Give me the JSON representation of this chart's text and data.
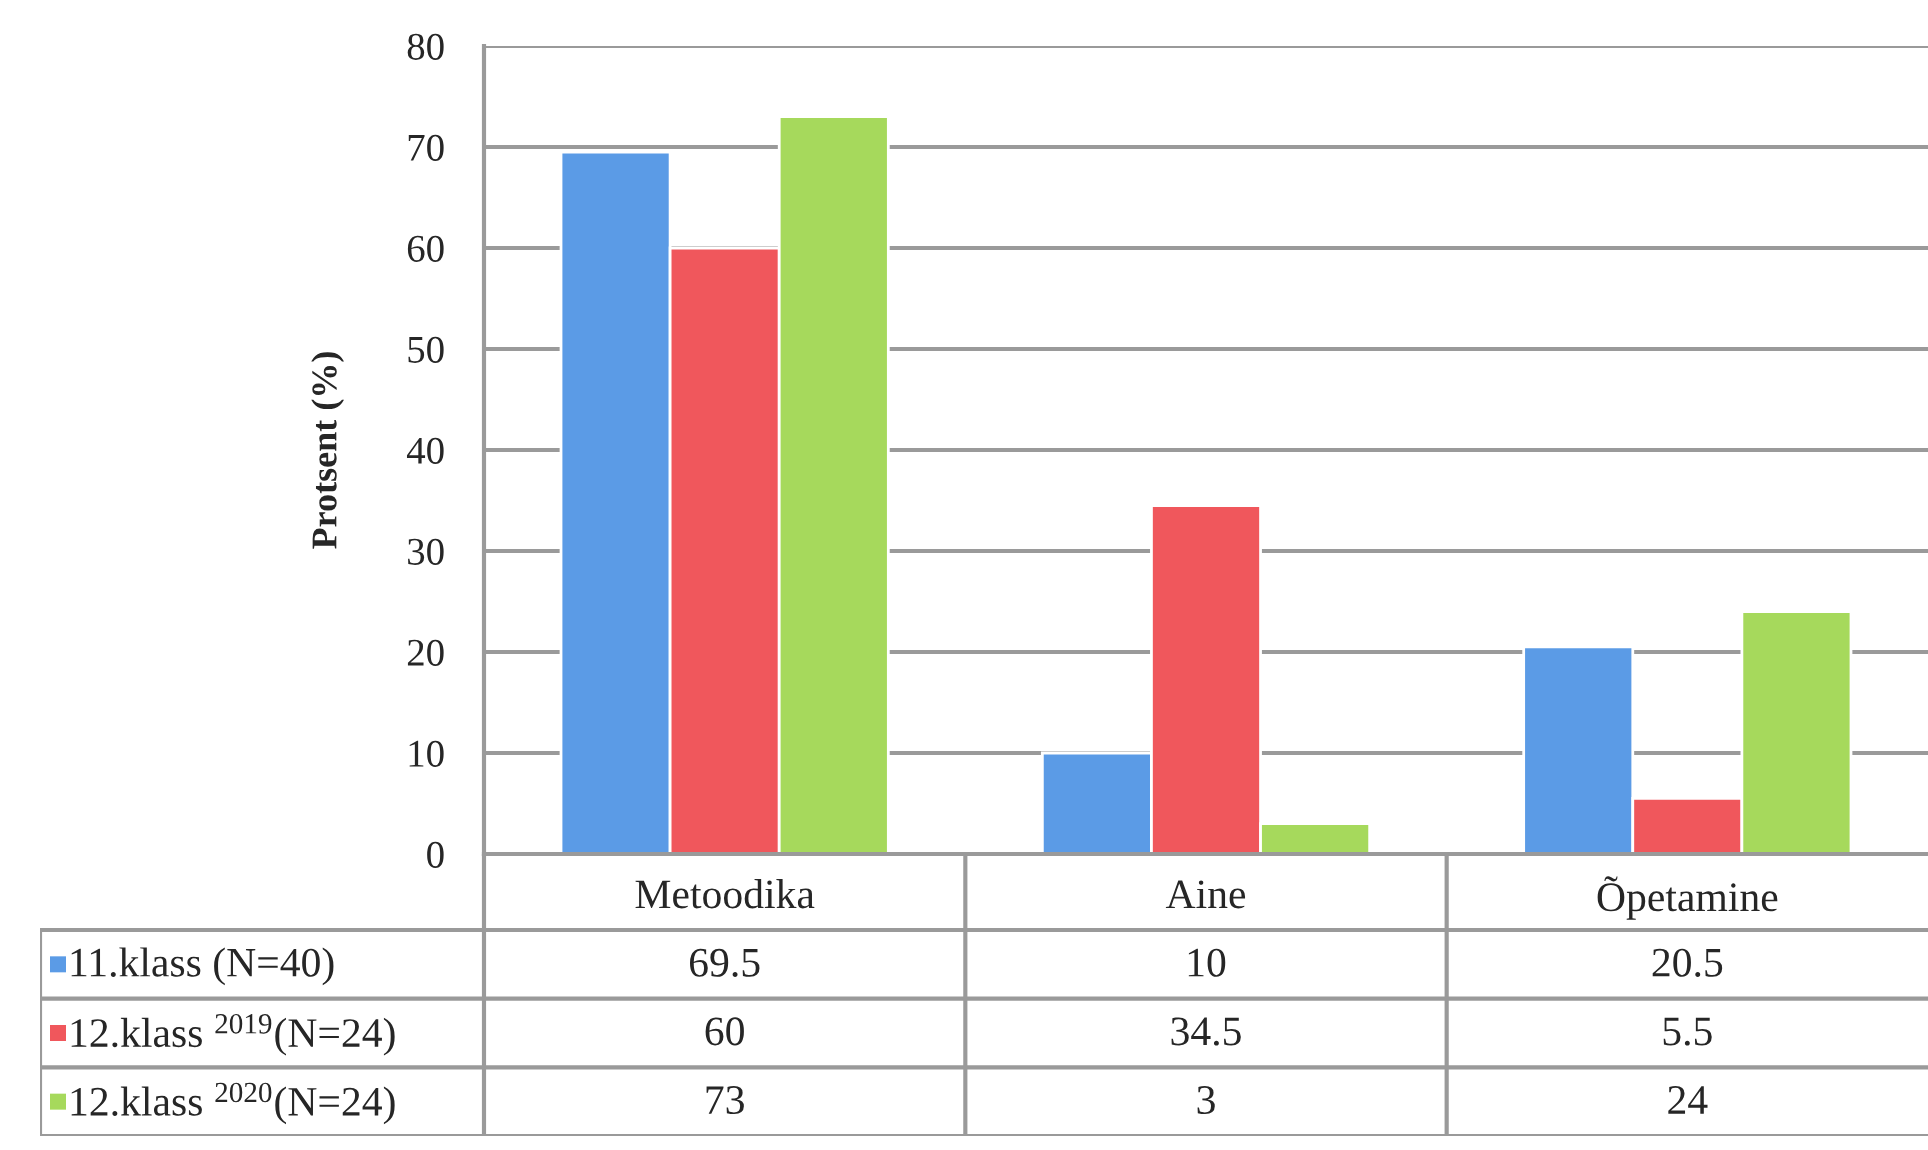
{
  "chart_data": {
    "type": "bar",
    "ylabel": "Protsent (%)",
    "categories": [
      "Metoodika",
      "Aine",
      "Õpetamine"
    ],
    "series": [
      {
        "name": "11.klass (N=40)",
        "color": "#5b9be6",
        "values": [
          69.5,
          10,
          20.5
        ]
      },
      {
        "name": "12.klass $^{2019}$(N=24)",
        "color": "#f0575c",
        "values": [
          60,
          34.5,
          5.5
        ]
      },
      {
        "name": "12.klass $^{2020}$(N=24)",
        "color": "#a6d95c",
        "values": [
          73,
          3,
          24
        ]
      }
    ],
    "ylim": [
      0,
      80
    ],
    "yticks": [
      0,
      10,
      20,
      30,
      40,
      50,
      60,
      70,
      80
    ],
    "grid": "y",
    "legend": "bottom",
    "data_labels": true
  }
}
